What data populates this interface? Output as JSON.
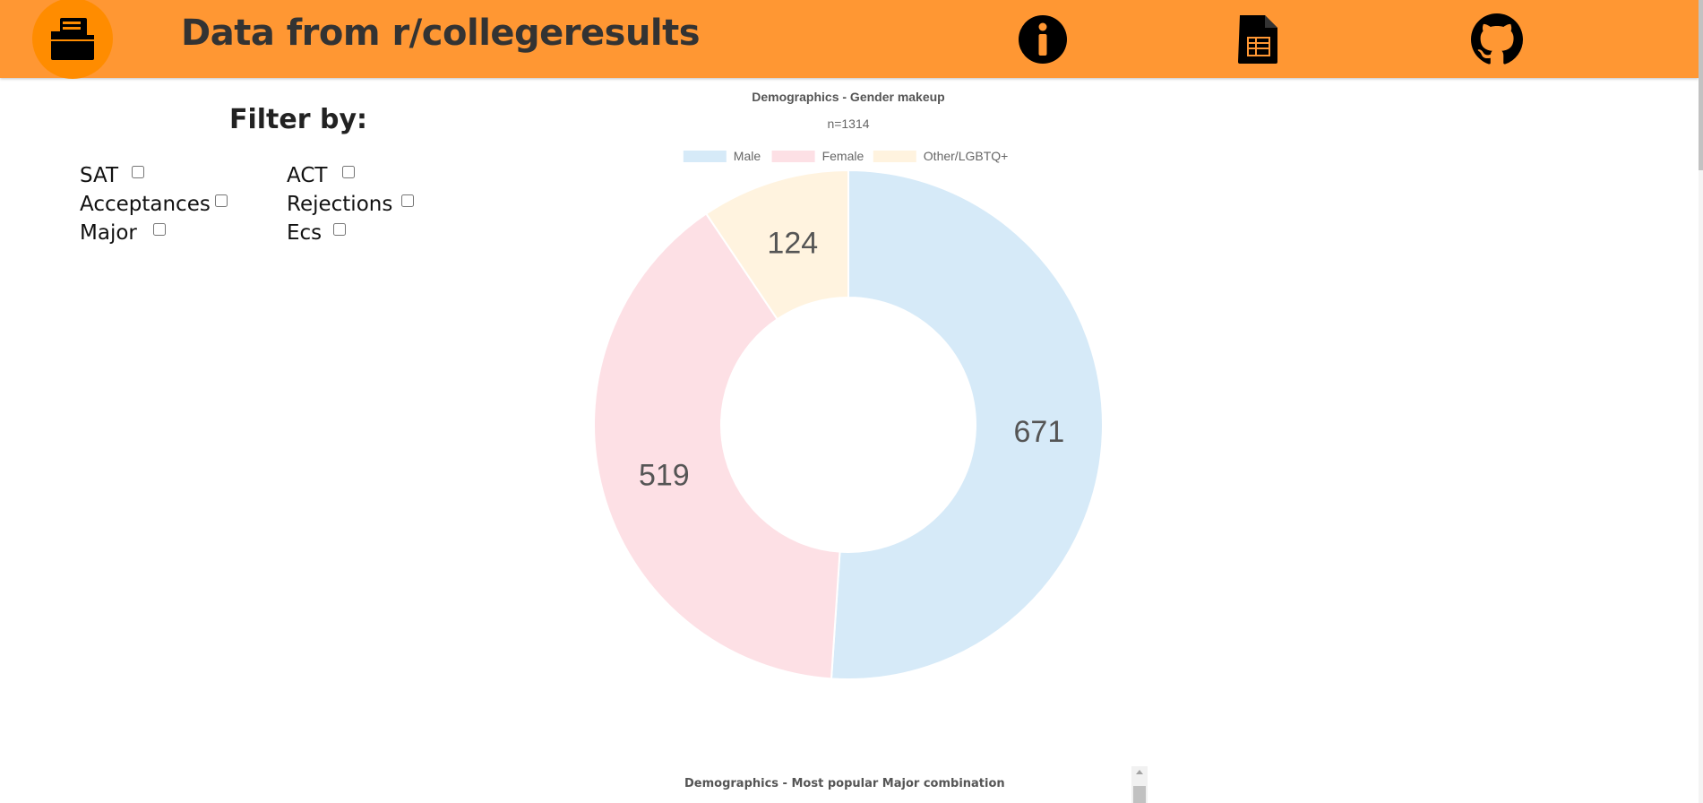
{
  "header": {
    "title": "Data from r/collegeresults",
    "bg_color": "#ff9733",
    "logo_icon": "folder-icon",
    "nav": [
      {
        "icon": "info-icon"
      },
      {
        "icon": "spreadsheet-icon"
      },
      {
        "icon": "github-icon"
      }
    ]
  },
  "filters": {
    "title": "Filter by:",
    "items": [
      {
        "label": "SAT",
        "checked": false
      },
      {
        "label": "ACT",
        "checked": false
      },
      {
        "label": "Acceptances",
        "checked": false
      },
      {
        "label": "Rejections",
        "checked": false
      },
      {
        "label": "Major",
        "checked": false
      },
      {
        "label": "Ecs",
        "checked": false
      }
    ]
  },
  "chart_data": [
    {
      "type": "pie",
      "style": "doughnut",
      "title": "Demographics - Gender makeup",
      "subtitle": "n=1314",
      "legend_position": "top",
      "categories": [
        "Male",
        "Female",
        "Other/LGBTQ+"
      ],
      "values": [
        671,
        519,
        124
      ],
      "colors": [
        "#d6eaf8",
        "#fde0e5",
        "#fff3df"
      ]
    }
  ],
  "second_chart": {
    "title": "Demographics - Most popular Major combination"
  }
}
